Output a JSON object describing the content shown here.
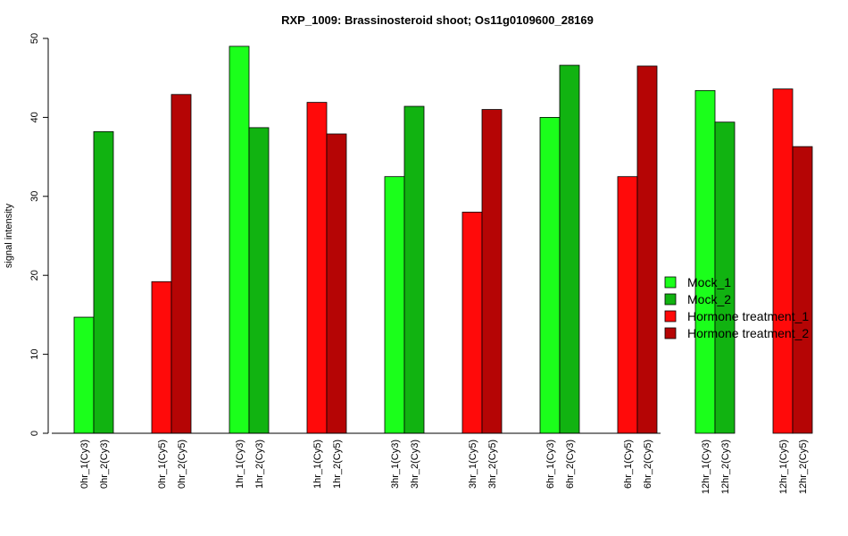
{
  "chart_data": {
    "type": "bar",
    "title": "RXP_1009: Brassinosteroid shoot; Os11g0109600_28169",
    "ylabel": "signal intensity",
    "xlabel": "",
    "ylim": [
      0,
      50
    ],
    "yticks": [
      "0",
      "10",
      "20",
      "30",
      "40",
      "50"
    ],
    "legend_position": "right",
    "legend": [
      {
        "name": "Mock_1",
        "color": "#1BFF1B"
      },
      {
        "name": "Mock_2",
        "color": "#11B311"
      },
      {
        "name": "Hormone treatment_1",
        "color": "#FF0A0A"
      },
      {
        "name": "Hormone treatment_2",
        "color": "#B50505"
      }
    ],
    "bars": [
      {
        "label": "0hr_1(Cy3)",
        "value": 14.7,
        "series": "Mock_1"
      },
      {
        "label": "0hr_2(Cy3)",
        "value": 38.2,
        "series": "Mock_2"
      },
      {
        "label": "0hr_1(Cy5)",
        "value": 19.2,
        "series": "Hormone treatment_1"
      },
      {
        "label": "0hr_2(Cy5)",
        "value": 42.9,
        "series": "Hormone treatment_2"
      },
      {
        "label": "1hr_1(Cy3)",
        "value": 49.0,
        "series": "Mock_1"
      },
      {
        "label": "1hr_2(Cy3)",
        "value": 38.7,
        "series": "Mock_2"
      },
      {
        "label": "1hr_1(Cy5)",
        "value": 41.9,
        "series": "Hormone treatment_1"
      },
      {
        "label": "1hr_2(Cy5)",
        "value": 37.9,
        "series": "Hormone treatment_2"
      },
      {
        "label": "3hr_1(Cy3)",
        "value": 32.5,
        "series": "Mock_1"
      },
      {
        "label": "3hr_2(Cy3)",
        "value": 41.4,
        "series": "Mock_2"
      },
      {
        "label": "3hr_1(Cy5)",
        "value": 28.0,
        "series": "Hormone treatment_1"
      },
      {
        "label": "3hr_2(Cy5)",
        "value": 41.0,
        "series": "Hormone treatment_2"
      },
      {
        "label": "6hr_1(Cy3)",
        "value": 40.0,
        "series": "Mock_1"
      },
      {
        "label": "6hr_2(Cy3)",
        "value": 46.6,
        "series": "Mock_2"
      },
      {
        "label": "6hr_1(Cy5)",
        "value": 32.5,
        "series": "Hormone treatment_1"
      },
      {
        "label": "6hr_2(Cy5)",
        "value": 46.5,
        "series": "Hormone treatment_2"
      },
      {
        "label": "12hr_1(Cy3)",
        "value": 43.4,
        "series": "Mock_1"
      },
      {
        "label": "12hr_2(Cy3)",
        "value": 39.4,
        "series": "Mock_2"
      },
      {
        "label": "12hr_1(Cy5)",
        "value": 43.6,
        "series": "Hormone treatment_1"
      },
      {
        "label": "12hr_2(Cy5)",
        "value": 36.3,
        "series": "Hormone treatment_2"
      }
    ]
  }
}
